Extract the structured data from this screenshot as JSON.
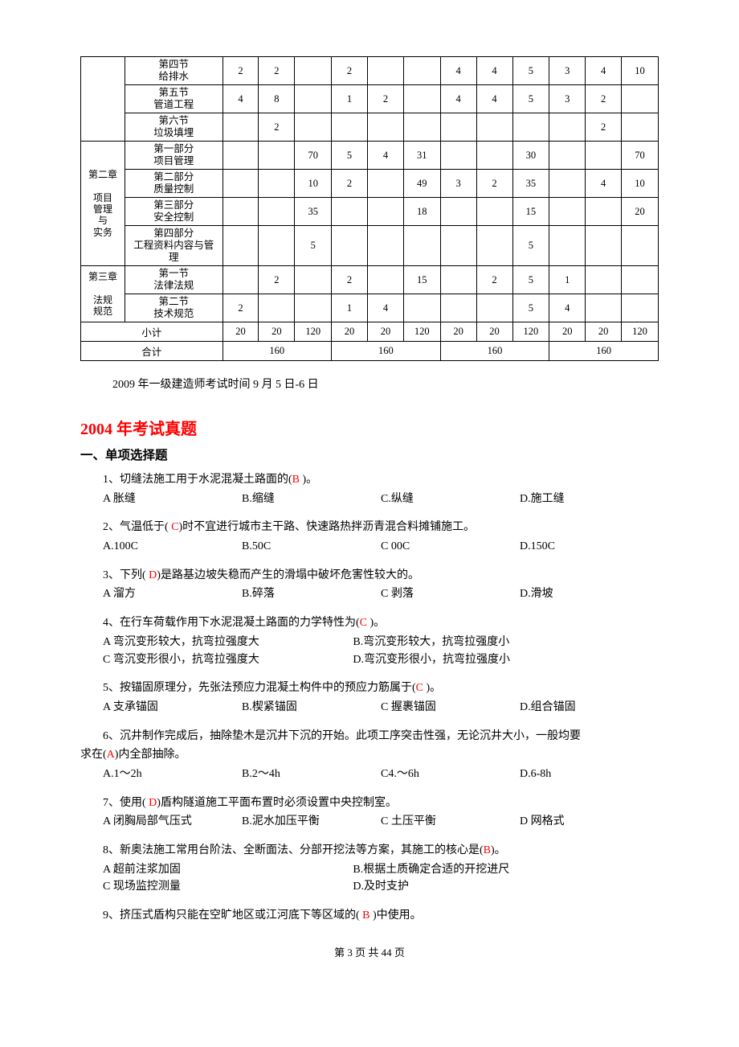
{
  "table": {
    "chapter_cells": {
      "ch2_line1": "第二章",
      "ch2_line2": "项目",
      "ch2_line3": "管理",
      "ch2_line4": "与",
      "ch2_line5": "实务",
      "ch3_line1": "第三章",
      "ch3_line2": "法规",
      "ch3_line3": "规范"
    },
    "rows": [
      {
        "label_l1": "第四节",
        "label_l2": "给排水",
        "c": [
          "2",
          "2",
          "",
          "2",
          "",
          "",
          "4",
          "4",
          "5",
          "3",
          "4",
          "10"
        ]
      },
      {
        "label_l1": "第五节",
        "label_l2": "管道工程",
        "c": [
          "4",
          "8",
          "",
          "1",
          "2",
          "",
          "4",
          "4",
          "5",
          "3",
          "2",
          ""
        ]
      },
      {
        "label_l1": "第六节",
        "label_l2": "垃圾填埋",
        "c": [
          "",
          "2",
          "",
          "",
          "",
          "",
          "",
          "",
          "",
          "",
          "2",
          ""
        ]
      },
      {
        "label_l1": "第一部分",
        "label_l2": "项目管理",
        "c": [
          "",
          "",
          "70",
          "5",
          "4",
          "31",
          "",
          "",
          "30",
          "",
          "",
          "70"
        ]
      },
      {
        "label_l1": "第二部分",
        "label_l2": "质量控制",
        "c": [
          "",
          "",
          "10",
          "2",
          "",
          "49",
          "3",
          "2",
          "35",
          "",
          "4",
          "10"
        ]
      },
      {
        "label_l1": "第三部分",
        "label_l2": "安全控制",
        "c": [
          "",
          "",
          "35",
          "",
          "",
          "18",
          "",
          "",
          "15",
          "",
          "",
          "20"
        ]
      },
      {
        "label_l1": "第四部分",
        "label_l2": "工程资料内容与管理",
        "c": [
          "",
          "",
          "5",
          "",
          "",
          "",
          "",
          "",
          "5",
          "",
          "",
          ""
        ]
      },
      {
        "label_l1": "第一节",
        "label_l2": "法律法规",
        "c": [
          "",
          "2",
          "",
          "2",
          "",
          "15",
          "",
          "2",
          "5",
          "1",
          "",
          ""
        ]
      },
      {
        "label_l1": "第二节",
        "label_l2": "技术规范",
        "c": [
          "2",
          "",
          "",
          "1",
          "4",
          "",
          "",
          "",
          "5",
          "4",
          "",
          ""
        ]
      }
    ],
    "subtotal_label": "小计",
    "subtotal": [
      "20",
      "20",
      "120",
      "20",
      "20",
      "120",
      "20",
      "20",
      "120",
      "20",
      "20",
      "120"
    ],
    "total_label": "合计",
    "total": [
      "160",
      "160",
      "160",
      "160"
    ]
  },
  "note": "2009 年一级建造师考试时间 9 月 5 日-6 日",
  "title_red": "2004 年考试真题",
  "section_title": "一、单项选择题",
  "questions": [
    {
      "stem_pre": "1、切缝法施工用于水泥混凝土路面的(",
      "ans": "B",
      "stem_post": " )。",
      "opts": [
        "A 胀缝",
        "B.缩缝",
        "C.纵缝",
        "D.施工缝"
      ],
      "layout": "4"
    },
    {
      "stem_pre": "2、气温低于( ",
      "ans": "C",
      "stem_post": ")时不宜进行城市主干路、快速路热拌沥青混合料摊铺施工。",
      "opts": [
        "A.100C",
        "B.50C",
        "C 00C",
        "D.150C"
      ],
      "layout": "4"
    },
    {
      "stem_pre": "3、下列( ",
      "ans": "D",
      "stem_post": ")是路基边坡失稳而产生的滑塌中破坏危害性较大的。",
      "opts": [
        "A 溜方",
        "B.碎落",
        "C 剥落",
        "D.滑坡"
      ],
      "layout": "4"
    },
    {
      "stem_pre": "4、在行车荷载作用下水泥混凝土路面的力学特性为(",
      "ans": "C",
      "stem_post": " )。",
      "opts": [
        "A 弯沉变形较大，抗弯拉强度大",
        "B.弯沉变形较大，抗弯拉强度小",
        "C 弯沉变形很小，抗弯拉强度大",
        "D.弯沉变形很小，抗弯拉强度小"
      ],
      "layout": "2x2"
    },
    {
      "stem_pre": "5、按锚固原理分，先张法预应力混凝土构件中的预应力筋属于(",
      "ans": "C",
      "stem_post": " )。",
      "opts": [
        "A 支承锚固",
        "B.楔紧锚固",
        "C 握裹锚固",
        "D.组合锚固"
      ],
      "layout": "4"
    },
    {
      "stem_pre": "6、沉井制作完成后，抽除垫木是沉井下沉的开始。此项工序突击性强，无论沉井大小，一般均要\n求在(",
      "ans": "A",
      "stem_post": ")内全部抽除。",
      "opts": [
        "A.1～2h",
        "B.2～4h",
        "C4.～6h",
        "D.6-8h"
      ],
      "layout": "4",
      "wrap": true
    },
    {
      "stem_pre": "7、使用( ",
      "ans": "D",
      "stem_post": ")盾构隧道施工平面布置时必须设置中央控制室。",
      "opts": [
        "A 闭胸局部气压式",
        "B.泥水加压平衡",
        "C 土压平衡",
        "D 网格式"
      ],
      "layout": "4"
    },
    {
      "stem_pre": "8、新奥法施工常用台阶法、全断面法、分部开挖法等方案，其施工的核心是(",
      "ans": "B",
      "stem_post": ")。",
      "opts": [
        "A 超前注浆加固",
        "B.根据土质确定合适的开挖进尺",
        "C 现场监控测量",
        "D.及时支护"
      ],
      "layout": "2x2"
    },
    {
      "stem_pre": "9、挤压式盾构只能在空旷地区或江河底下等区域的( ",
      "ans": "B",
      "stem_post": " )中使用。",
      "opts": [],
      "layout": "none"
    }
  ],
  "footer": "第 3 页 共 44 页"
}
